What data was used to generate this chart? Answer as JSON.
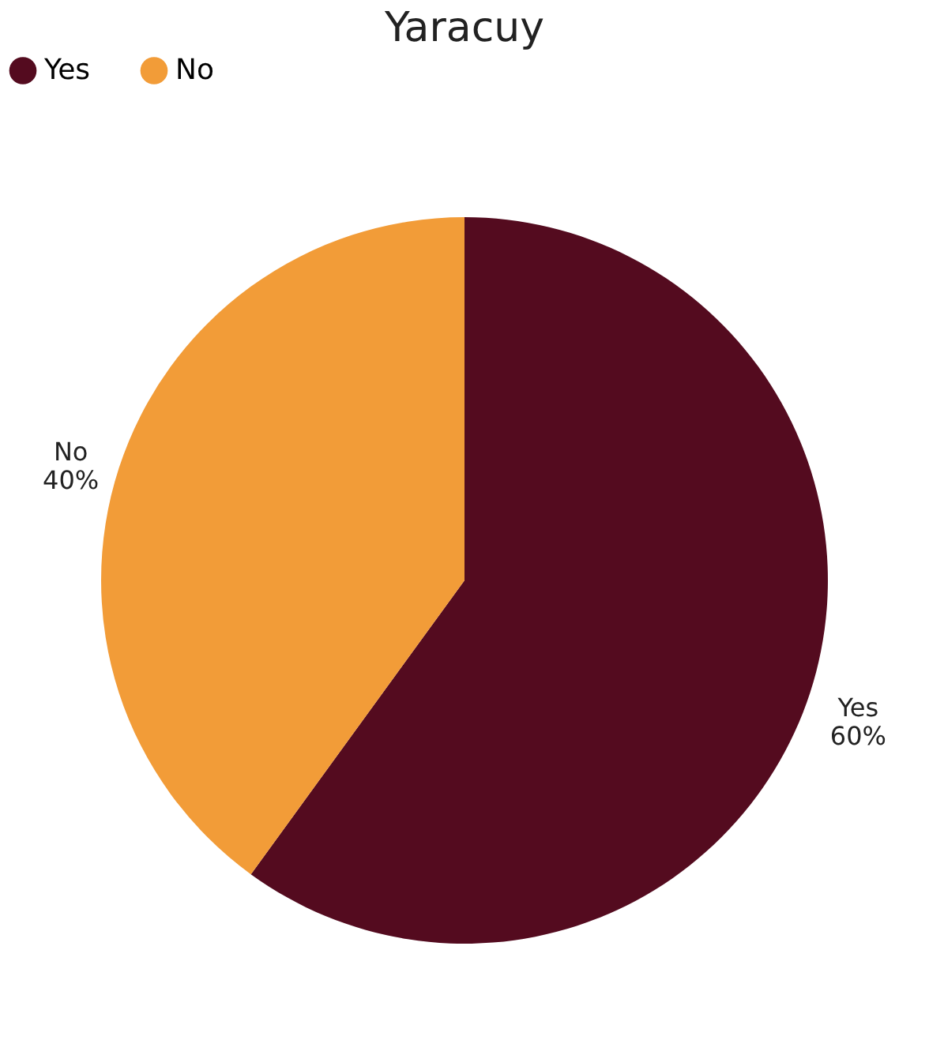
{
  "chart_data": {
    "type": "pie",
    "title": "Yaracuy",
    "categories": [
      "Yes",
      "No"
    ],
    "values": [
      60,
      40
    ],
    "colors": [
      "#540b1f",
      "#f29c38"
    ],
    "value_labels": [
      "60%",
      "40%"
    ],
    "legend": "top"
  }
}
